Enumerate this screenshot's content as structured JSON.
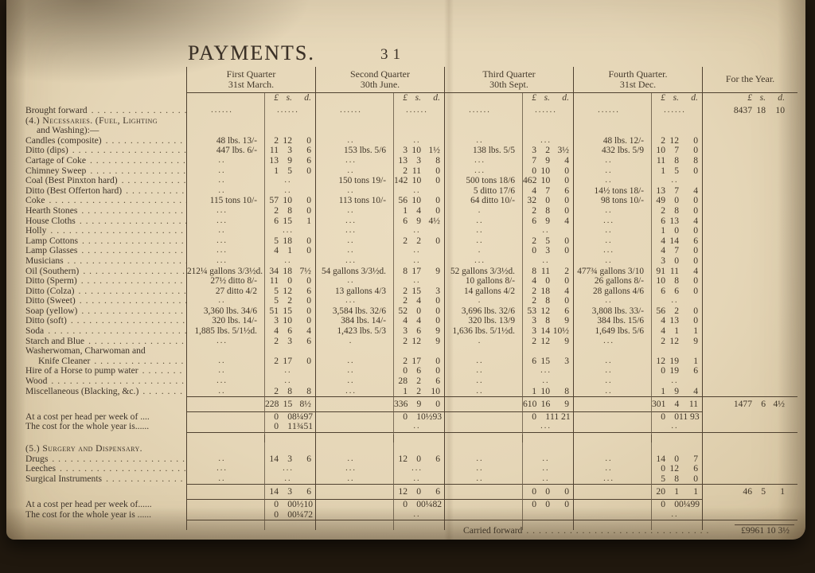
{
  "page": {
    "title": "PAYMENTS.",
    "page_number": "31"
  },
  "table": {
    "quarters": [
      {
        "line1": "First Quarter",
        "line2": "31st March."
      },
      {
        "line1": "Second Quarter",
        "line2": "30th June."
      },
      {
        "line1": "Third Quarter",
        "line2": "30th Sept."
      },
      {
        "line1": "Fourth Quarter.",
        "line2": "31st Dec."
      }
    ],
    "year_header": "For the Year.",
    "currency_header": "£ s. d.",
    "rows": [
      {
        "t": "dotted",
        "l": "Brought forward",
        "q": [
          "......",
          "......",
          "......",
          "......",
          "......",
          "......",
          "......",
          "......"
        ],
        "y": "8437 18 10"
      },
      {
        "t": "section",
        "l": "(4.) Necessaries. (Fuel, Lighting",
        "leader": false
      },
      {
        "t": "section2",
        "l": "and Washing):—",
        "leader": false
      },
      {
        "t": "item",
        "l": "Candles (composite)",
        "q": [
          "48 lbs. 13/-",
          "2 12 0",
          "..",
          "..",
          "..",
          "...",
          "48 lbs. 12/-",
          "2 12 0"
        ]
      },
      {
        "t": "item",
        "l": "Ditto (dips)",
        "q": [
          "447 lbs. 6/-",
          "11 3 6",
          "153 lbs. 5/6",
          "3 10 1½",
          "138 lbs. 5/5",
          "3 2 3½",
          "432 lbs. 5/9",
          "10 7 0"
        ]
      },
      {
        "t": "item",
        "l": "Cartage of Coke",
        "q": [
          "..",
          "13 9 6",
          "...",
          "13 3 8",
          "...",
          "7 9 4",
          "..",
          "11 8 8"
        ]
      },
      {
        "t": "item",
        "l": "Chimney Sweep",
        "q": [
          "..",
          "1 5 0",
          "..",
          "2 11 0",
          "...",
          "0 10 0",
          "..",
          "1 5 0"
        ]
      },
      {
        "t": "item",
        "l": "Coal (Best Pinxton hard)",
        "q": [
          "..",
          "..",
          "150 tons 19/-",
          "142 10 0",
          "500 tons 18/6",
          "462 10 0",
          "..",
          ".."
        ]
      },
      {
        "t": "item",
        "l": "Ditto (Best Offerton hard)",
        "q": [
          "..",
          "..",
          "..",
          "..",
          "5 ditto 17/6",
          "4 7 6",
          "14½ tons 18/-",
          "13 7 4"
        ]
      },
      {
        "t": "item",
        "l": "Coke",
        "q": [
          "115 tons 10/-",
          "57 10 0",
          "113 tons 10/-",
          "56 10 0",
          "64 ditto 10/-",
          "32 0 0",
          "98 tons 10/-",
          "49 0 0"
        ]
      },
      {
        "t": "item",
        "l": "Hearth Stones",
        "q": [
          "...",
          "2 8 0",
          "..",
          "1 4 0",
          ".",
          "2 8 0",
          "..",
          "2 8 0"
        ]
      },
      {
        "t": "item",
        "l": "House Cloths",
        "q": [
          "...",
          "6 15 1",
          "...",
          "6 9 4½",
          "..",
          "6 9 4",
          "...",
          "6 13 4"
        ]
      },
      {
        "t": "item",
        "l": "Holly",
        "q": [
          "..",
          "...",
          "...",
          "..",
          "..",
          "..",
          "..",
          "1 0 0"
        ]
      },
      {
        "t": "item",
        "l": "Lamp Cottons",
        "q": [
          "...",
          "5 18 0",
          "..",
          "2 2 0",
          "..",
          "2 5 0",
          "..",
          "4 14 6"
        ]
      },
      {
        "t": "item",
        "l": "Lamp Glasses",
        "q": [
          "...",
          "4 1 0",
          "..",
          "..",
          ".",
          "0 3 0",
          "...",
          "4 7 0"
        ]
      },
      {
        "t": "item",
        "l": "Musicians",
        "q": [
          "...",
          "..",
          "...",
          "..",
          "...",
          "..",
          "..",
          "3 0 0"
        ]
      },
      {
        "t": "item",
        "l": "Oil (Southern)",
        "q": [
          "212¼ gallons 3/3½d.",
          "34 18 7½",
          "54 gallons 3/3½d.",
          "8 17 9",
          "52 gallons 3/3½d.",
          "8 11 2",
          "477¾ gallons 3/10",
          "91 11 4"
        ]
      },
      {
        "t": "item",
        "l": "Ditto (Sperm)",
        "q": [
          "27½ ditto 8/-",
          "11 0 0",
          "..",
          "..",
          "10 gallons 8/-",
          "4 0 0",
          "26 gallons 8/-",
          "10 8 0"
        ]
      },
      {
        "t": "item",
        "l": "Ditto (Colza)",
        "q": [
          "27 ditto 4/2",
          "5 12 6",
          "13 gallons 4/3",
          "2 15 3",
          "14 gallons 4/2",
          "2 18 4",
          "28 gallons 4/6",
          "6 6 0"
        ]
      },
      {
        "t": "item",
        "l": "Ditto (Sweet)",
        "q": [
          "..",
          "5 2 0",
          "...",
          "2 4 0",
          ".",
          "2 8 0",
          "..",
          ".."
        ]
      },
      {
        "t": "item",
        "l": "Soap (yellow)",
        "q": [
          "3,360 lbs. 34/6",
          "51 15 0",
          "3,584 lbs. 32/6",
          "52 0 0",
          "3,696 lbs. 32/6",
          "53 12 6",
          "3,808 lbs. 33/-",
          "56 2 0"
        ]
      },
      {
        "t": "item",
        "l": "Ditto (soft)",
        "q": [
          "320 lbs. 14/-",
          "3 10 0",
          "384 lbs. 14/-",
          "4 4 0",
          "320 lbs. 13/9",
          "3 8 9",
          "384 lbs. 15/6",
          "4 13 0"
        ]
      },
      {
        "t": "item",
        "l": "Soda",
        "q": [
          "1,885 lbs. 5/1½d.",
          "4 6 4",
          "1,423 lbs. 5/3",
          "3 6 9",
          "1,636 lbs. 5/1½d.",
          "3 14 10½",
          "1,649 lbs. 5/6",
          "4 1 1"
        ]
      },
      {
        "t": "item",
        "l": "Starch and Blue",
        "q": [
          "...",
          "2 3 6",
          ".",
          "2 12 9",
          ".",
          "2 12 9",
          "...",
          "2 12 9"
        ]
      },
      {
        "t": "item",
        "l": "Washerwoman, Charwoman and",
        "leader": false,
        "q": [
          "",
          "",
          "",
          "",
          "",
          "",
          "",
          ""
        ]
      },
      {
        "t": "item2",
        "l": "Knife Cleaner",
        "q": [
          "..",
          "2 17 0",
          "..",
          "2 17 0",
          "..",
          "6 15 3",
          "..",
          "12 19 1"
        ]
      },
      {
        "t": "item",
        "l": "Hire of a Horse to pump water",
        "q": [
          "..",
          "..",
          "..",
          "0 6 0",
          "..",
          "...",
          "..",
          "0 19 6"
        ]
      },
      {
        "t": "item",
        "l": "Wood",
        "q": [
          "...",
          "..",
          "..",
          "28 2 6",
          "..",
          "..",
          "..",
          ".."
        ]
      },
      {
        "t": "item",
        "l": "Miscellaneous (Blacking, &c.)",
        "q": [
          "..",
          "2 8 8",
          "...",
          "1 2 10",
          "..",
          "1 10 8",
          "..",
          "1 9 4"
        ]
      },
      {
        "t": "total",
        "q": [
          "",
          "228 15 8½",
          "",
          "336 9 0",
          "",
          "610 16 9",
          "",
          "301 4 11"
        ],
        "y": "1477 6 4½"
      },
      {
        "t": "perhead",
        "l": "At a cost per head per week of ....",
        "q": [
          "",
          "0 0 8¼97",
          "",
          "0 1 0½93",
          "",
          "0 1 11 21",
          "",
          "0 0 11 93"
        ]
      },
      {
        "t": "perhead",
        "l": "The cost for the whole year is......",
        "q": [
          "",
          "0 1 1¾51",
          "",
          "..",
          "",
          "...",
          "",
          ".."
        ]
      },
      {
        "t": "rule"
      },
      {
        "t": "spacer",
        "h": 12
      },
      {
        "t": "section",
        "l": "(5.) Surgery and Dispensary.",
        "leader": false
      },
      {
        "t": "item",
        "l": "Drugs",
        "q": [
          "..",
          "14 3 6",
          "..",
          "12 0 6",
          "..",
          "..",
          "..",
          "14 0 7"
        ]
      },
      {
        "t": "item",
        "l": "Leeches",
        "q": [
          "...",
          "...",
          "...",
          "...",
          "..",
          "..",
          "..",
          "0 12 6"
        ]
      },
      {
        "t": "item",
        "l": "Surgical Instruments",
        "q": [
          "..",
          "..",
          "..",
          "..",
          "..",
          "..",
          "...",
          "5 8 0"
        ]
      },
      {
        "t": "total",
        "q": [
          "",
          "14 3 6",
          "",
          "12 0 6",
          "",
          "0 0 0",
          "",
          "20 1 1"
        ],
        "y": "46 5 1"
      },
      {
        "t": "perhead",
        "l": "At a cost per head per week of......",
        "q": [
          "",
          "0 0 0½10",
          "",
          "0 0 0¼82",
          "",
          "0 0 0",
          "",
          "0 0 0¼99"
        ]
      },
      {
        "t": "perhead",
        "l": "The cost for the whole year is ......",
        "q": [
          "",
          "0 0 0¼72",
          "",
          "..",
          "",
          "",
          "",
          ".."
        ]
      },
      {
        "t": "rule"
      },
      {
        "t": "carried"
      }
    ],
    "carried_forward": {
      "label": "Carried forward",
      "value": "£9961 10 3½"
    }
  }
}
